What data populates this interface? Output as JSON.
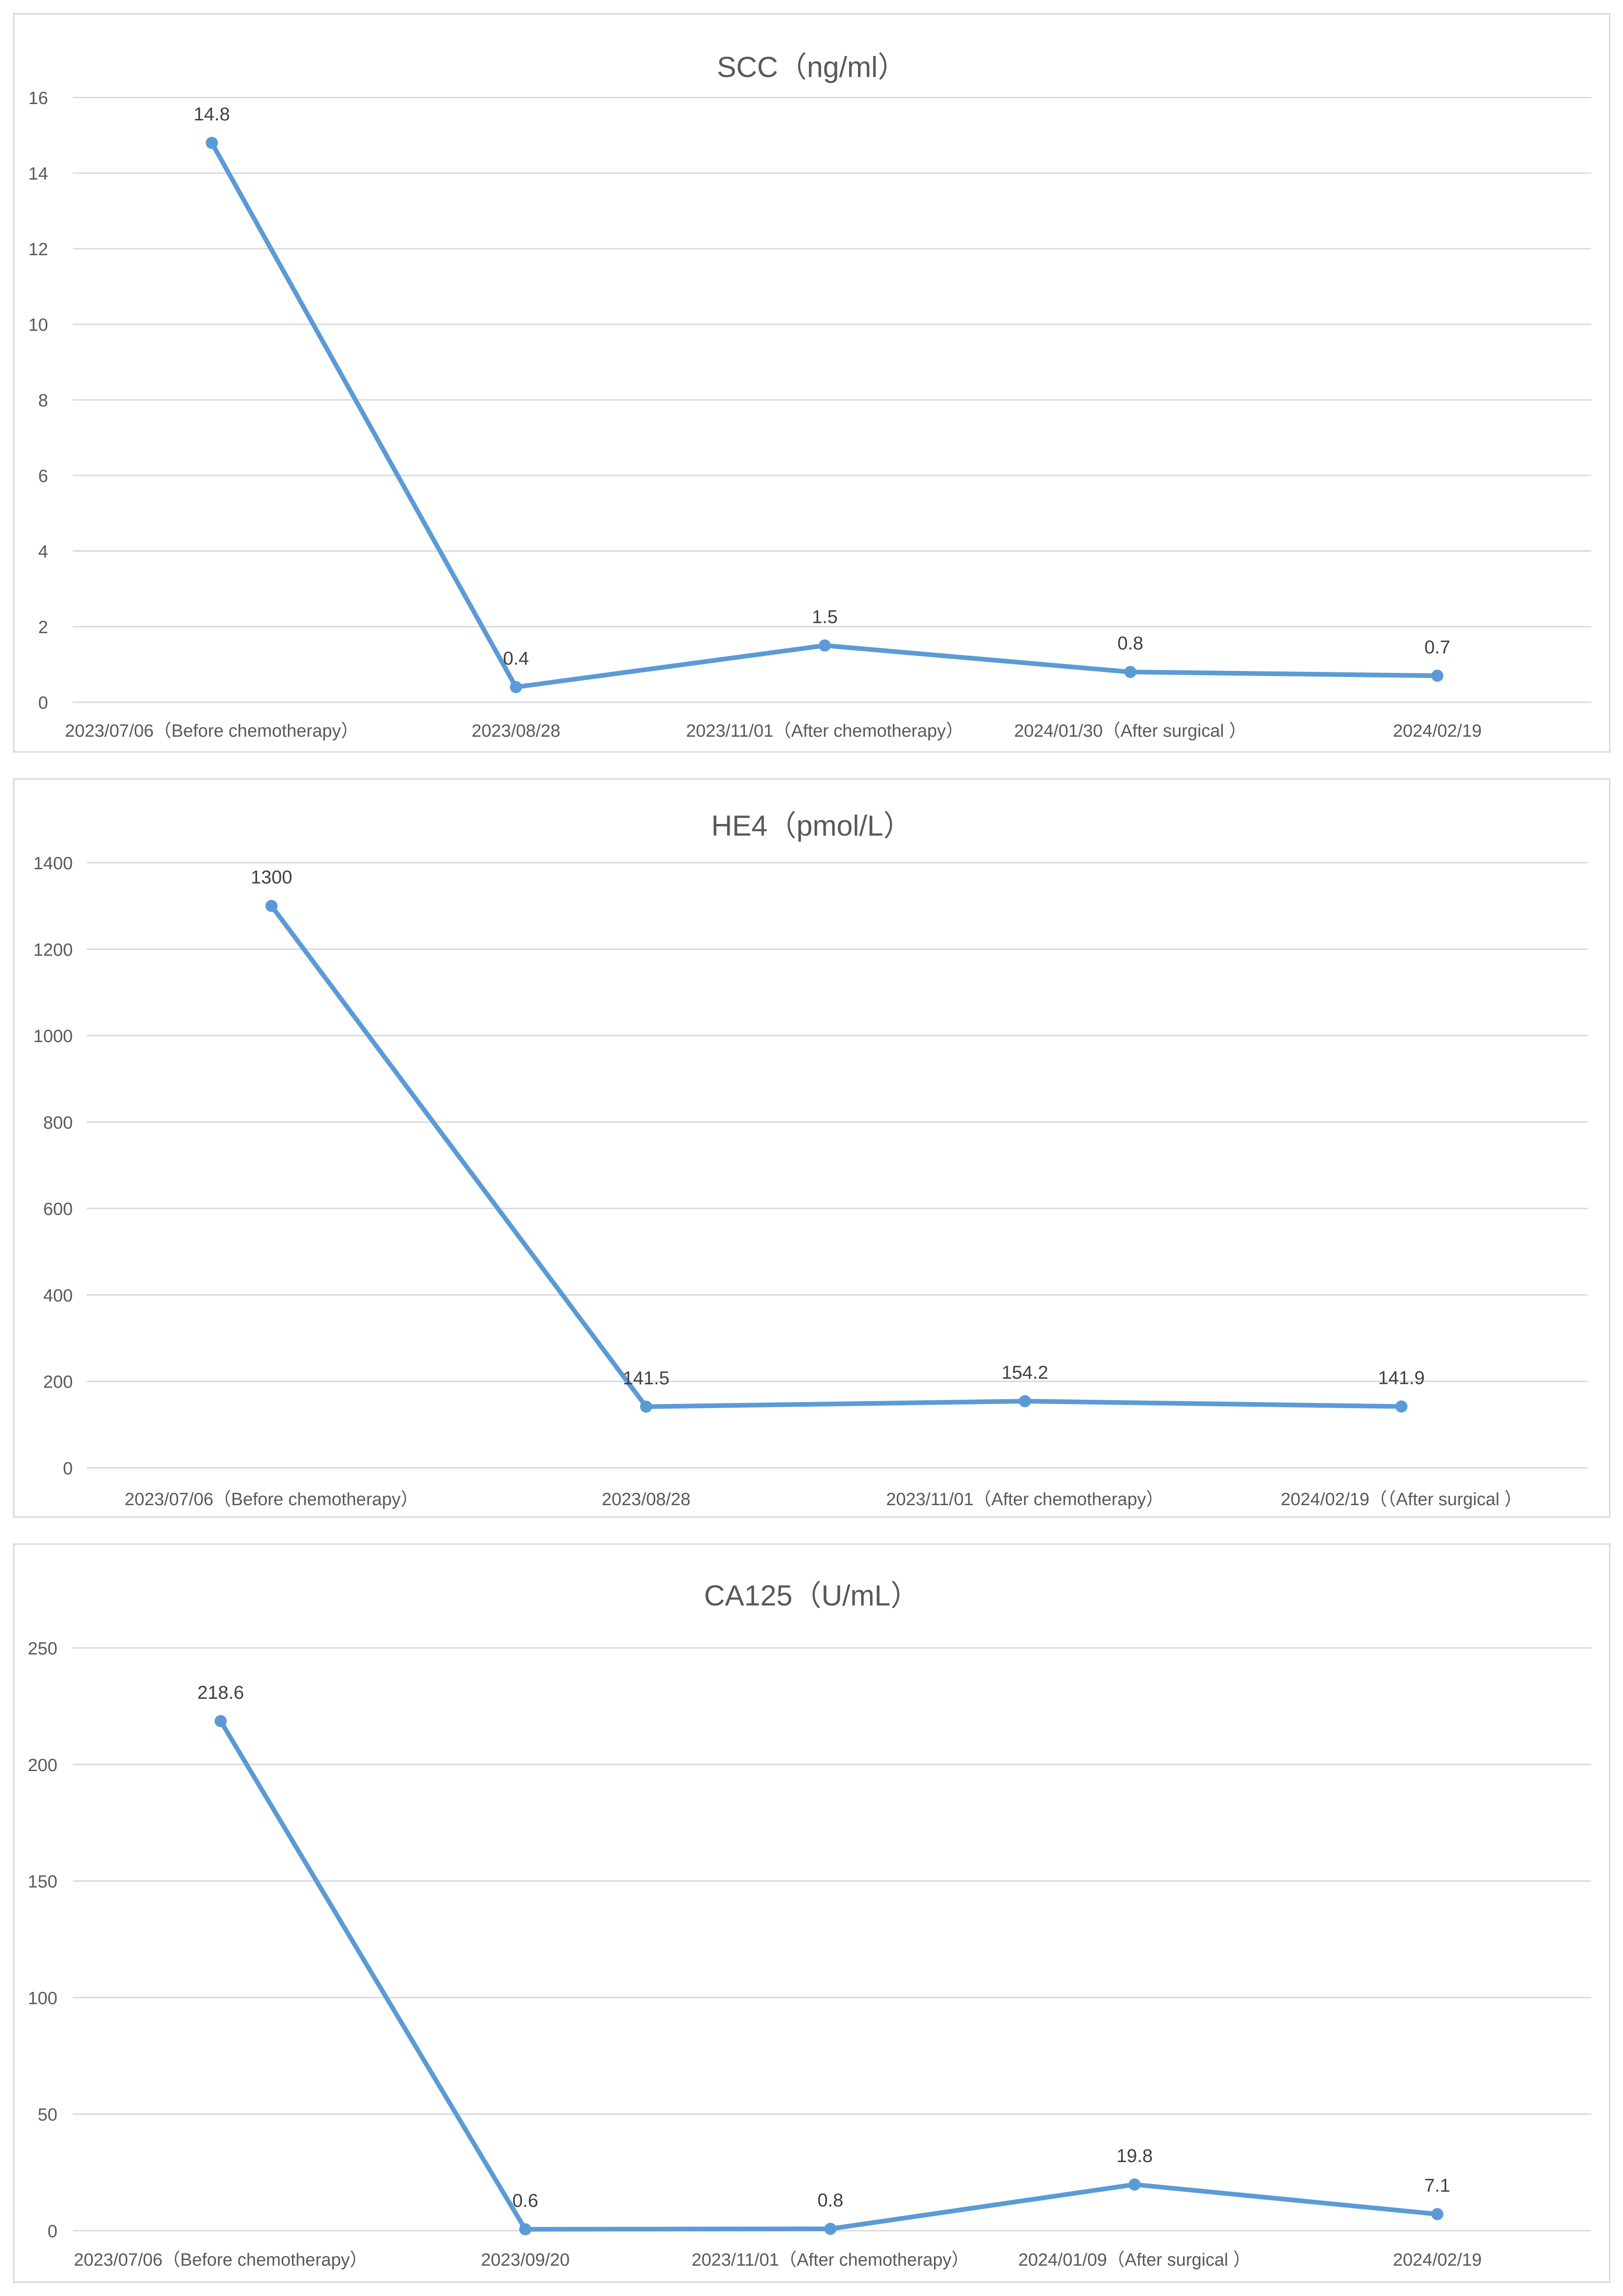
{
  "chart_data": [
    {
      "type": "line",
      "title": "SCC（ng/ml）",
      "categories": [
        "2023/07/06（Before chemotherapy）",
        "2023/08/28",
        "2023/11/01（After chemotherapy）",
        "2024/01/30（After surgical ）",
        "2024/02/19"
      ],
      "series": [
        {
          "values": [
            14.8,
            0.4,
            1.5,
            0.8,
            0.7
          ]
        }
      ],
      "data_labels": [
        "14.8",
        "0.4",
        "1.5",
        "0.8",
        "0.7"
      ],
      "ylim": [
        0,
        16
      ],
      "yticks": [
        "0",
        "2",
        "4",
        "6",
        "8",
        "10",
        "12",
        "14",
        "16"
      ],
      "grid": true,
      "line_color": "#5b9bd5"
    },
    {
      "type": "line",
      "title": "HE4（pmol/L）",
      "categories": [
        "2023/07/06（Before chemotherapy）",
        "2023/08/28",
        "2023/11/01（After chemotherapy）",
        "2024/02/19（（After surgical ）"
      ],
      "series": [
        {
          "values": [
            1300,
            141.5,
            154.2,
            141.9
          ]
        }
      ],
      "data_labels": [
        "1300",
        "141.5",
        "154.2",
        "141.9"
      ],
      "ylim": [
        0,
        1400
      ],
      "yticks": [
        "0",
        "200",
        "400",
        "600",
        "800",
        "1000",
        "1200",
        "1400"
      ],
      "grid": true,
      "line_color": "#5b9bd5"
    },
    {
      "type": "line",
      "title": "CA125（U/mL）",
      "categories": [
        "2023/07/06（Before chemotherapy）",
        "2023/09/20",
        "2023/11/01（After chemotherapy）",
        "2024/01/09（After surgical ）",
        "2024/02/19"
      ],
      "series": [
        {
          "values": [
            218.6,
            0.6,
            0.8,
            19.8,
            7.1
          ]
        }
      ],
      "data_labels": [
        "218.6",
        "0.6",
        "0.8",
        "19.8",
        "7.1"
      ],
      "ylim": [
        0,
        250
      ],
      "yticks": [
        "0",
        "50",
        "100",
        "150",
        "200",
        "250"
      ],
      "grid": true,
      "line_color": "#5b9bd5"
    }
  ]
}
